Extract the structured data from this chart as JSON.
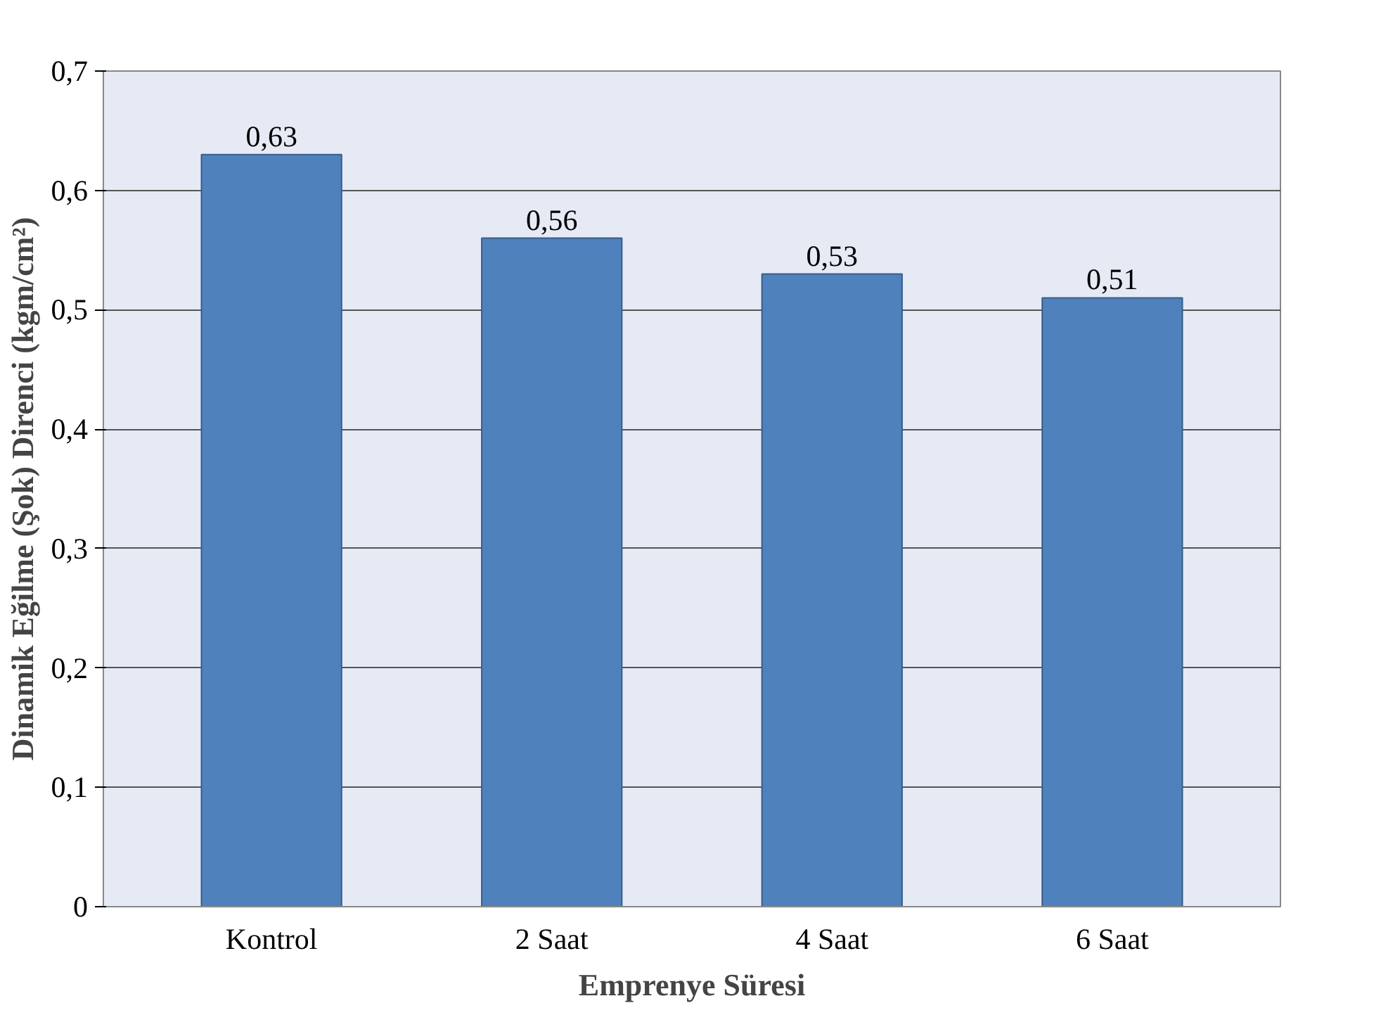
{
  "chart_data": {
    "type": "bar",
    "xlabel": "Emprenye Süresi",
    "ylabel": "Dinamik Eğilme (Şok) Direnci (kgm/cm²)",
    "categories": [
      "Kontrol",
      "2 Saat",
      "4 Saat",
      "6 Saat"
    ],
    "values": [
      0.63,
      0.56,
      0.53,
      0.51
    ],
    "value_labels": [
      "0,63",
      "0,56",
      "0,53",
      "0,51"
    ],
    "color": "#4f81bd",
    "ylim": [
      0,
      0.7
    ],
    "yticks": [
      {
        "value": 0,
        "label": "0"
      },
      {
        "value": 0.1,
        "label": "0,1"
      },
      {
        "value": 0.2,
        "label": "0,2"
      },
      {
        "value": 0.3,
        "label": "0,3"
      },
      {
        "value": 0.4,
        "label": "0,4"
      },
      {
        "value": 0.5,
        "label": "0,5"
      },
      {
        "value": 0.6,
        "label": "0,6"
      },
      {
        "value": 0.7,
        "label": "0,7"
      }
    ],
    "grid": "y"
  }
}
